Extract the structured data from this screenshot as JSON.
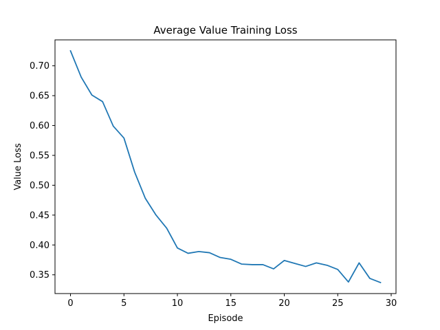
{
  "chart_data": {
    "type": "line",
    "title": "Average Value Training Loss",
    "xlabel": "Episode",
    "ylabel": "Value Loss",
    "xlim": [
      -1.45,
      30.45
    ],
    "ylim": [
      0.3186,
      0.7434
    ],
    "xticks": [
      0,
      5,
      10,
      15,
      20,
      25,
      30
    ],
    "yticks": [
      0.35,
      0.4,
      0.45,
      0.5,
      0.55,
      0.6,
      0.65,
      0.7
    ],
    "grid": false,
    "series": [
      {
        "color": "#1f77b4",
        "x": [
          0,
          1,
          2,
          3,
          4,
          5,
          6,
          7,
          8,
          9,
          10,
          11,
          12,
          13,
          14,
          15,
          16,
          17,
          18,
          19,
          20,
          21,
          22,
          23,
          24,
          25,
          26,
          27,
          28,
          29
        ],
        "values": [
          0.725,
          0.681,
          0.651,
          0.64,
          0.599,
          0.579,
          0.522,
          0.478,
          0.45,
          0.428,
          0.395,
          0.386,
          0.389,
          0.387,
          0.379,
          0.376,
          0.368,
          0.367,
          0.367,
          0.36,
          0.374,
          0.369,
          0.364,
          0.37,
          0.366,
          0.359,
          0.338,
          0.37,
          0.344,
          0.337
        ]
      }
    ]
  }
}
